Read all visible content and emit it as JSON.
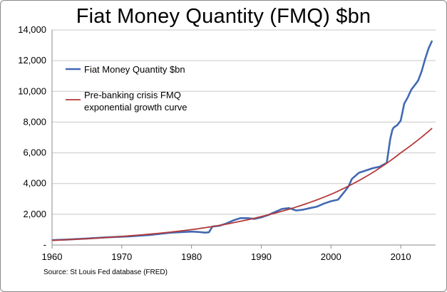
{
  "chart_data": {
    "type": "line",
    "title": "Fiat Money Quantity (FMQ)  $bn",
    "xlabel": "",
    "ylabel": "",
    "xlim": [
      1960,
      2015
    ],
    "ylim": [
      0,
      14000
    ],
    "x_ticks": [
      "1960",
      "1970",
      "1980",
      "1990",
      "2000",
      "2010"
    ],
    "y_ticks": [
      "-",
      "2,000",
      "4,000",
      "6,000",
      "8,000",
      "10,000",
      "12,000",
      "14,000"
    ],
    "grid": "horizontal",
    "legend": "inside-left",
    "source": "Source: St Louis Fed  database (FRED)",
    "series": [
      {
        "name": "Fiat Money Quantity $bn",
        "color": "#4169b2",
        "x": [
          1959,
          1962,
          1965,
          1968,
          1971,
          1974,
          1977,
          1979,
          1980,
          1981,
          1982,
          1982.5,
          1983,
          1984,
          1985,
          1986,
          1987,
          1988,
          1989,
          1990,
          1991,
          1992,
          1993,
          1994,
          1995,
          1996,
          1997,
          1998,
          1999,
          2000,
          2001,
          2002,
          2002.5,
          2003,
          2004,
          2005,
          2006,
          2007,
          2008,
          2008.5,
          2008.8,
          2009,
          2009.5,
          2010,
          2010.5,
          2011,
          2011.5,
          2012,
          2012.5,
          2013,
          2013.5,
          2014,
          2014.5
        ],
        "values": [
          300,
          350,
          420,
          500,
          560,
          650,
          800,
          850,
          870,
          850,
          800,
          830,
          1200,
          1250,
          1400,
          1600,
          1750,
          1750,
          1700,
          1800,
          1950,
          2150,
          2350,
          2400,
          2250,
          2300,
          2400,
          2500,
          2700,
          2850,
          2950,
          3500,
          3800,
          4300,
          4700,
          4850,
          5000,
          5100,
          5350,
          6900,
          7500,
          7650,
          7800,
          8100,
          9200,
          9600,
          10100,
          10400,
          10700,
          11300,
          12100,
          12800,
          13300
        ]
      },
      {
        "name": "Pre-banking crisis FMQ exponential growth curve",
        "name_lines": [
          "Pre-banking crisis FMQ",
          "exponential growth curve"
        ],
        "color": "#b43a3a",
        "fn": "exponential",
        "x": [
          1960,
          1970,
          1980,
          1990,
          2000,
          2010,
          2014.5
        ],
        "values": [
          300,
          560,
          1000,
          1850,
          3300,
          6000,
          7600
        ]
      }
    ]
  }
}
